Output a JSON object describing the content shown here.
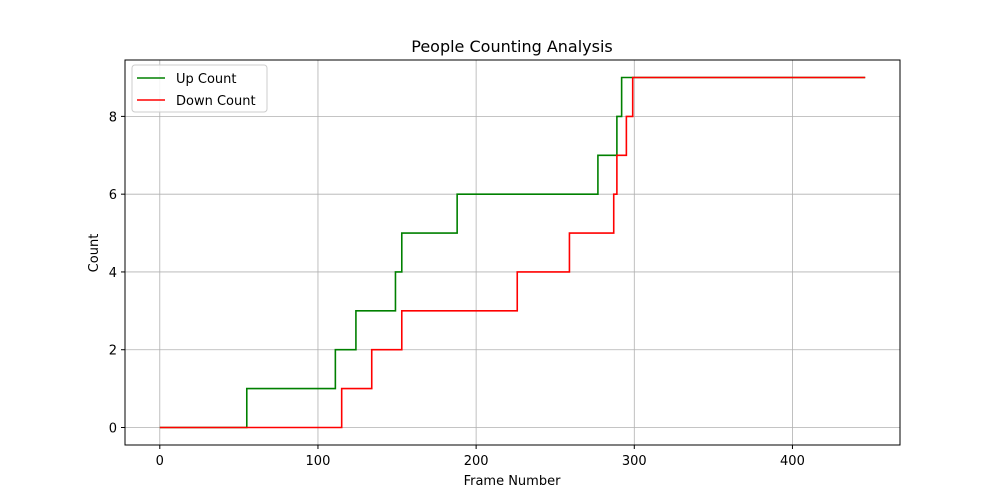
{
  "chart_data": {
    "type": "line",
    "title": "People Counting Analysis",
    "xlabel": "Frame Number",
    "ylabel": "Count",
    "xlim": [
      -22,
      468
    ],
    "ylim": [
      -0.45,
      9.45
    ],
    "xticks": [
      0,
      100,
      200,
      300,
      400
    ],
    "yticks": [
      0,
      2,
      4,
      6,
      8
    ],
    "grid": true,
    "legend_position": "top-left",
    "step": true,
    "series": [
      {
        "name": "Up Count",
        "color": "#008000",
        "x": [
          0,
          55,
          111,
          124,
          149,
          153,
          188,
          277,
          289,
          292,
          446
        ],
        "y": [
          0,
          1,
          2,
          3,
          4,
          5,
          6,
          7,
          8,
          9,
          9
        ]
      },
      {
        "name": "Down Count",
        "color": "#ff0000",
        "x": [
          0,
          115,
          134,
          153,
          226,
          259,
          287,
          289,
          295,
          299,
          446
        ],
        "y": [
          0,
          1,
          2,
          3,
          4,
          5,
          6,
          7,
          8,
          9,
          9
        ]
      }
    ]
  }
}
